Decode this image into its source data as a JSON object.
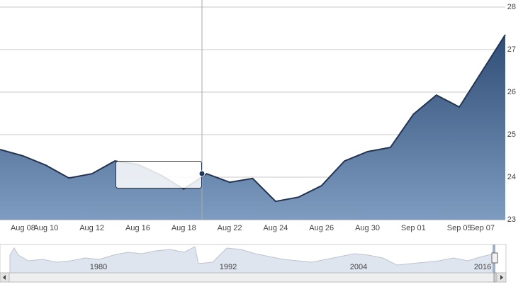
{
  "chart_data": {
    "type": "area",
    "categories": [
      null,
      "Aug 08",
      "Aug 10",
      null,
      "Aug 12",
      null,
      "Aug 16",
      null,
      "Aug 18",
      null,
      "Aug 22",
      null,
      "Aug 24",
      null,
      "Aug 26",
      null,
      "Aug 30",
      null,
      "Sep 01",
      null,
      "Sep 05",
      "Sep 07",
      null
    ],
    "values": [
      24.65,
      24.5,
      24.28,
      23.98,
      24.08,
      24.38,
      24.3,
      24.05,
      23.72,
      24.08,
      23.88,
      23.97,
      23.43,
      23.53,
      23.8,
      24.38,
      24.6,
      24.7,
      25.48,
      25.93,
      25.65,
      26.5,
      27.35
    ],
    "color": "#1f3558",
    "ylim": [
      23,
      28
    ],
    "yticks": [
      23,
      24,
      25,
      26,
      27,
      28
    ],
    "grid": true,
    "navigator_labels": [
      "1980",
      "1992",
      "2004",
      "2016"
    ]
  }
}
